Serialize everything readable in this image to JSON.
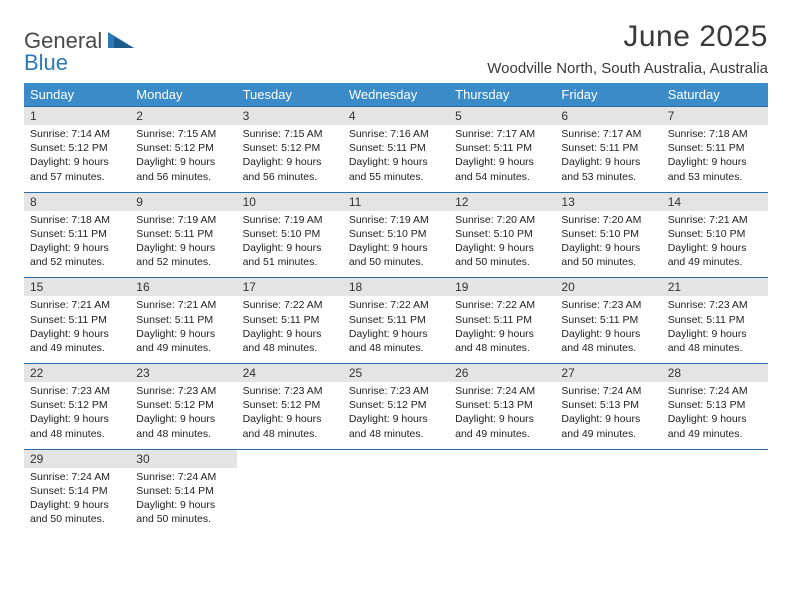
{
  "logo": {
    "first": "General",
    "second": "Blue"
  },
  "title": "June 2025",
  "location": "Woodville North, South Australia, Australia",
  "colors": {
    "header_bg": "#3b8bc8",
    "header_text": "#ffffff",
    "daynum_bg": "#e4e4e4",
    "row_border": "#2a6ca8",
    "logo_gray": "#4a4a4a",
    "logo_blue": "#2a7ab8"
  },
  "day_headers": [
    "Sunday",
    "Monday",
    "Tuesday",
    "Wednesday",
    "Thursday",
    "Friday",
    "Saturday"
  ],
  "weeks": [
    [
      {
        "n": "1",
        "sr": "7:14 AM",
        "ss": "5:12 PM",
        "dl": "9 hours and 57 minutes."
      },
      {
        "n": "2",
        "sr": "7:15 AM",
        "ss": "5:12 PM",
        "dl": "9 hours and 56 minutes."
      },
      {
        "n": "3",
        "sr": "7:15 AM",
        "ss": "5:12 PM",
        "dl": "9 hours and 56 minutes."
      },
      {
        "n": "4",
        "sr": "7:16 AM",
        "ss": "5:11 PM",
        "dl": "9 hours and 55 minutes."
      },
      {
        "n": "5",
        "sr": "7:17 AM",
        "ss": "5:11 PM",
        "dl": "9 hours and 54 minutes."
      },
      {
        "n": "6",
        "sr": "7:17 AM",
        "ss": "5:11 PM",
        "dl": "9 hours and 53 minutes."
      },
      {
        "n": "7",
        "sr": "7:18 AM",
        "ss": "5:11 PM",
        "dl": "9 hours and 53 minutes."
      }
    ],
    [
      {
        "n": "8",
        "sr": "7:18 AM",
        "ss": "5:11 PM",
        "dl": "9 hours and 52 minutes."
      },
      {
        "n": "9",
        "sr": "7:19 AM",
        "ss": "5:11 PM",
        "dl": "9 hours and 52 minutes."
      },
      {
        "n": "10",
        "sr": "7:19 AM",
        "ss": "5:10 PM",
        "dl": "9 hours and 51 minutes."
      },
      {
        "n": "11",
        "sr": "7:19 AM",
        "ss": "5:10 PM",
        "dl": "9 hours and 50 minutes."
      },
      {
        "n": "12",
        "sr": "7:20 AM",
        "ss": "5:10 PM",
        "dl": "9 hours and 50 minutes."
      },
      {
        "n": "13",
        "sr": "7:20 AM",
        "ss": "5:10 PM",
        "dl": "9 hours and 50 minutes."
      },
      {
        "n": "14",
        "sr": "7:21 AM",
        "ss": "5:10 PM",
        "dl": "9 hours and 49 minutes."
      }
    ],
    [
      {
        "n": "15",
        "sr": "7:21 AM",
        "ss": "5:11 PM",
        "dl": "9 hours and 49 minutes."
      },
      {
        "n": "16",
        "sr": "7:21 AM",
        "ss": "5:11 PM",
        "dl": "9 hours and 49 minutes."
      },
      {
        "n": "17",
        "sr": "7:22 AM",
        "ss": "5:11 PM",
        "dl": "9 hours and 48 minutes."
      },
      {
        "n": "18",
        "sr": "7:22 AM",
        "ss": "5:11 PM",
        "dl": "9 hours and 48 minutes."
      },
      {
        "n": "19",
        "sr": "7:22 AM",
        "ss": "5:11 PM",
        "dl": "9 hours and 48 minutes."
      },
      {
        "n": "20",
        "sr": "7:23 AM",
        "ss": "5:11 PM",
        "dl": "9 hours and 48 minutes."
      },
      {
        "n": "21",
        "sr": "7:23 AM",
        "ss": "5:11 PM",
        "dl": "9 hours and 48 minutes."
      }
    ],
    [
      {
        "n": "22",
        "sr": "7:23 AM",
        "ss": "5:12 PM",
        "dl": "9 hours and 48 minutes."
      },
      {
        "n": "23",
        "sr": "7:23 AM",
        "ss": "5:12 PM",
        "dl": "9 hours and 48 minutes."
      },
      {
        "n": "24",
        "sr": "7:23 AM",
        "ss": "5:12 PM",
        "dl": "9 hours and 48 minutes."
      },
      {
        "n": "25",
        "sr": "7:23 AM",
        "ss": "5:12 PM",
        "dl": "9 hours and 48 minutes."
      },
      {
        "n": "26",
        "sr": "7:24 AM",
        "ss": "5:13 PM",
        "dl": "9 hours and 49 minutes."
      },
      {
        "n": "27",
        "sr": "7:24 AM",
        "ss": "5:13 PM",
        "dl": "9 hours and 49 minutes."
      },
      {
        "n": "28",
        "sr": "7:24 AM",
        "ss": "5:13 PM",
        "dl": "9 hours and 49 minutes."
      }
    ],
    [
      {
        "n": "29",
        "sr": "7:24 AM",
        "ss": "5:14 PM",
        "dl": "9 hours and 50 minutes."
      },
      {
        "n": "30",
        "sr": "7:24 AM",
        "ss": "5:14 PM",
        "dl": "9 hours and 50 minutes."
      },
      null,
      null,
      null,
      null,
      null
    ]
  ],
  "labels": {
    "sunrise": "Sunrise: ",
    "sunset": "Sunset: ",
    "daylight": "Daylight: "
  }
}
